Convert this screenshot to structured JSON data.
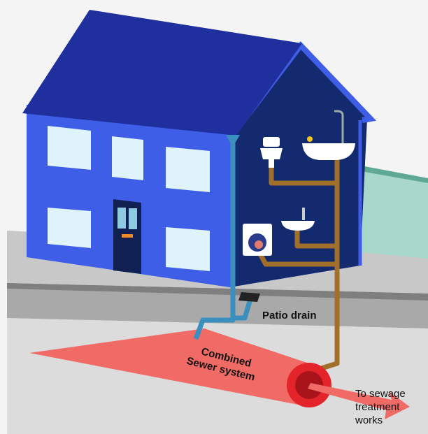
{
  "labels": {
    "patio_drain": "Patio drain",
    "sewer": [
      "Combined",
      "Sewer system"
    ],
    "destination": [
      "To sewage",
      "treatment",
      "works"
    ]
  }
}
